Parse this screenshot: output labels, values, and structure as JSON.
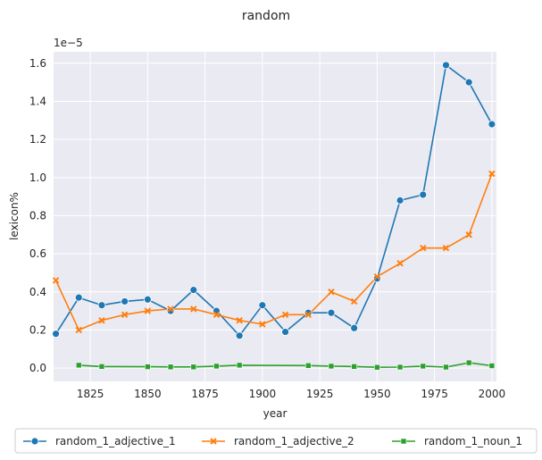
{
  "chart_data": {
    "type": "line",
    "title": "random",
    "xlabel": "year",
    "ylabel": "lexicon%",
    "y_offset_label": "1e−5",
    "xlim": [
      1809,
      2002
    ],
    "ylim": [
      -0.07,
      1.66
    ],
    "x_ticks": [
      1825,
      1850,
      1875,
      1900,
      1925,
      1950,
      1975,
      2000
    ],
    "y_ticks": [
      0.0,
      0.2,
      0.4,
      0.6,
      0.8,
      1.0,
      1.2,
      1.4,
      1.6
    ],
    "y_tick_labels": [
      "0.0",
      "0.2",
      "0.4",
      "0.6",
      "0.8",
      "1.0",
      "1.2",
      "1.4",
      "1.6"
    ],
    "grid": true,
    "legend_position": "bottom",
    "series": [
      {
        "name": "random_1_adjective_1",
        "color": "#1f77b4",
        "marker": "circle",
        "x": [
          1810,
          1820,
          1830,
          1840,
          1850,
          1860,
          1870,
          1880,
          1890,
          1900,
          1910,
          1920,
          1930,
          1940,
          1950,
          1960,
          1970,
          1980,
          1990,
          2000
        ],
        "y": [
          0.18,
          0.37,
          0.33,
          0.35,
          0.36,
          0.3,
          0.41,
          0.3,
          0.17,
          0.33,
          0.19,
          0.29,
          0.29,
          0.21,
          0.47,
          0.88,
          0.91,
          1.59,
          1.5,
          1.28
        ]
      },
      {
        "name": "random_1_adjective_2",
        "color": "#ff7f0e",
        "marker": "x",
        "x": [
          1810,
          1820,
          1830,
          1840,
          1850,
          1860,
          1870,
          1880,
          1890,
          1900,
          1910,
          1920,
          1930,
          1940,
          1950,
          1960,
          1970,
          1980,
          1990,
          2000
        ],
        "y": [
          0.46,
          0.2,
          0.25,
          0.28,
          0.3,
          0.31,
          0.31,
          0.28,
          0.25,
          0.23,
          0.28,
          0.28,
          0.4,
          0.35,
          0.48,
          0.55,
          0.63,
          0.63,
          0.7,
          1.02
        ]
      },
      {
        "name": "random_1_noun_1",
        "color": "#2ca02c",
        "marker": "square",
        "x": [
          1820,
          1830,
          1850,
          1860,
          1870,
          1880,
          1890,
          1920,
          1930,
          1940,
          1950,
          1960,
          1970,
          1980,
          1990,
          2000
        ],
        "y": [
          0.015,
          0.008,
          0.007,
          0.006,
          0.006,
          0.01,
          0.015,
          0.013,
          0.01,
          0.008,
          0.004,
          0.005,
          0.01,
          0.005,
          0.028,
          0.012
        ]
      }
    ]
  }
}
